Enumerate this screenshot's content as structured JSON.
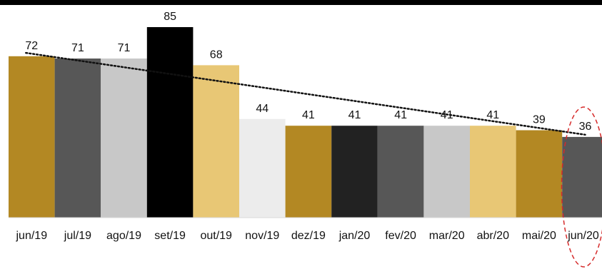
{
  "chart_data": {
    "type": "bar",
    "categories": [
      "jun/19",
      "jul/19",
      "ago/19",
      "set/19",
      "out/19",
      "nov/19",
      "dez/19",
      "jan/20",
      "fev/20",
      "mar/20",
      "abr/20",
      "mai/20",
      "jun/20"
    ],
    "values": [
      72,
      71,
      71,
      85,
      68,
      44,
      41,
      41,
      41,
      41,
      41,
      39,
      36
    ],
    "data_labels": [
      "72",
      "71",
      "71",
      "85",
      "68",
      "44",
      "41",
      "41",
      "41",
      "41",
      "41",
      "39",
      "36"
    ],
    "bar_colors": [
      "#b38823",
      "#575757",
      "#c8c8c8",
      "#000000",
      "#e8c775",
      "#ececec",
      "#b38823",
      "#222222",
      "#575757",
      "#c8c8c8",
      "#e8c775",
      "#b38823",
      "#575757"
    ],
    "trendline": {
      "style": "dotted",
      "color": "#111111",
      "start_value": 73.5,
      "end_value": 37
    },
    "highlight": {
      "category": "jun/20",
      "shape": "dashed-ellipse",
      "color": "#d62b2b"
    },
    "ylim": [
      0,
      85
    ],
    "grid": false,
    "legend": "none",
    "title": "",
    "xlabel": "",
    "ylabel": ""
  }
}
